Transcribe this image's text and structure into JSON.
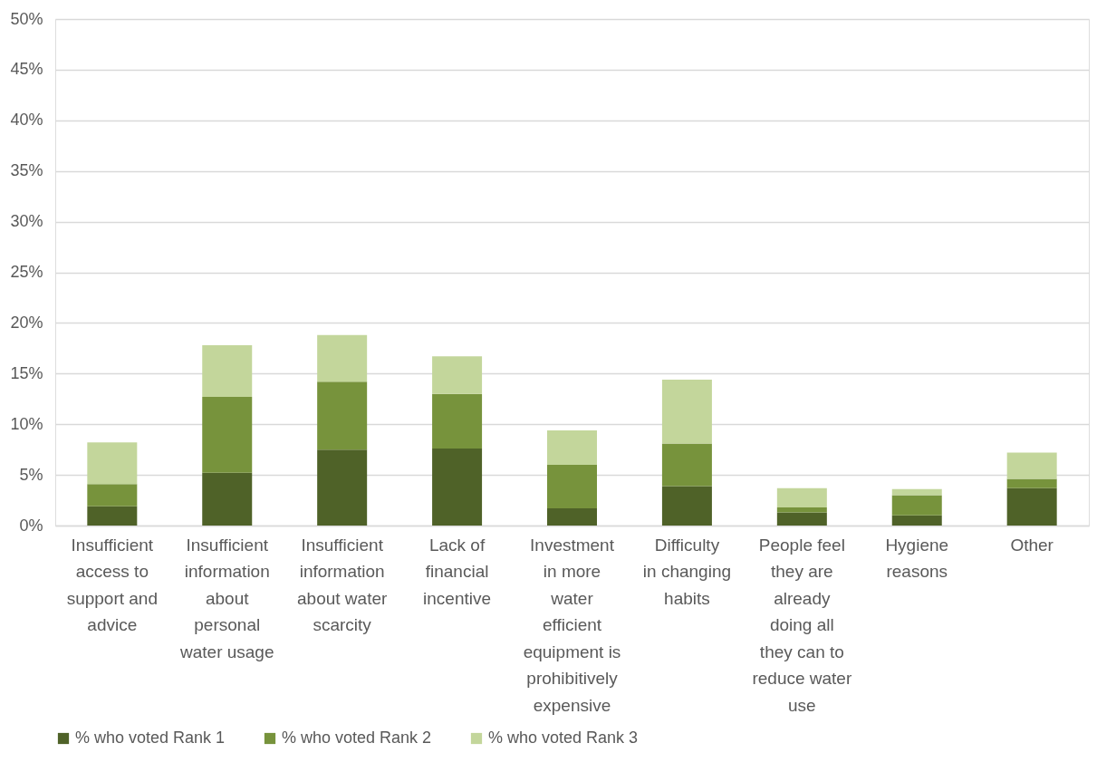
{
  "chart_data": {
    "type": "bar",
    "stacked": true,
    "categories": [
      "Insufficient access to support and advice",
      "Insufficient information about personal water usage",
      "Insufficient information about water scarcity",
      "Lack of financial incentive",
      "Investment in more water efficient equipment is prohibitively expensive",
      "Difficulty in changing habits",
      "People feel they are already doing all they can to reduce water use",
      "Hygiene reasons",
      "Other"
    ],
    "series": [
      {
        "name": "% who voted Rank 1",
        "color": "#4f6228",
        "values": [
          1.9,
          5.2,
          7.5,
          7.6,
          1.7,
          3.9,
          1.3,
          1.0,
          3.7
        ]
      },
      {
        "name": "% who voted Rank 2",
        "color": "#77933c",
        "values": [
          2.2,
          7.5,
          6.7,
          5.4,
          4.3,
          4.2,
          0.5,
          2.0,
          0.9
        ]
      },
      {
        "name": "% who voted Rank 3",
        "color": "#c3d69b",
        "values": [
          4.1,
          5.1,
          4.6,
          3.7,
          3.4,
          6.3,
          1.9,
          0.6,
          2.6
        ]
      }
    ],
    "ylim": [
      0,
      50
    ],
    "yticks": [
      {
        "value": 0,
        "label": "0%"
      },
      {
        "value": 5,
        "label": "5%"
      },
      {
        "value": 10,
        "label": "10%"
      },
      {
        "value": 15,
        "label": "15%"
      },
      {
        "value": 20,
        "label": "20%"
      },
      {
        "value": 25,
        "label": "25%"
      },
      {
        "value": 30,
        "label": "30%"
      },
      {
        "value": 35,
        "label": "35%"
      },
      {
        "value": 40,
        "label": "40%"
      },
      {
        "value": 45,
        "label": "45%"
      },
      {
        "value": 50,
        "label": "50%"
      }
    ],
    "grid": "y",
    "legend": "bottom"
  }
}
